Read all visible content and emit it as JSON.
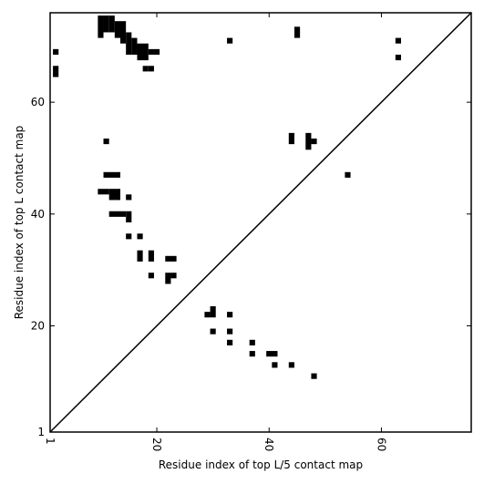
{
  "chart_data": {
    "type": "heatmap",
    "xlabel": "Residue index of top L/5 contact map",
    "ylabel": "Residue index of top L contact map",
    "xlim": [
      1,
      76
    ],
    "ylim": [
      1,
      76
    ],
    "x_ticks": [
      1,
      20,
      40,
      60
    ],
    "y_ticks": [
      1,
      20,
      40,
      60
    ],
    "diagonal": true,
    "color": "#000000",
    "upper_triangle": [
      {
        "x": 10,
        "y": 72,
        "w": 1,
        "h": 4
      },
      {
        "x": 11,
        "y": 73,
        "w": 1,
        "h": 3
      },
      {
        "x": 12,
        "y": 73,
        "w": 1,
        "h": 3
      },
      {
        "x": 13,
        "y": 72,
        "w": 1,
        "h": 3
      },
      {
        "x": 14,
        "y": 71,
        "w": 1,
        "h": 4
      },
      {
        "x": 15,
        "y": 69,
        "w": 1,
        "h": 4
      },
      {
        "x": 16,
        "y": 69,
        "w": 1,
        "h": 3
      },
      {
        "x": 17,
        "y": 68,
        "w": 2,
        "h": 3
      },
      {
        "x": 19,
        "y": 69,
        "w": 1,
        "h": 1
      },
      {
        "x": 20,
        "y": 69,
        "w": 1,
        "h": 1
      },
      {
        "x": 18,
        "y": 66,
        "w": 1,
        "h": 1
      },
      {
        "x": 19,
        "y": 66,
        "w": 1,
        "h": 1
      },
      {
        "x": 2,
        "y": 69,
        "w": 1,
        "h": 1
      },
      {
        "x": 2,
        "y": 65,
        "w": 1,
        "h": 2
      },
      {
        "x": 11,
        "y": 53,
        "w": 1,
        "h": 1
      },
      {
        "x": 11,
        "y": 47,
        "w": 3,
        "h": 1
      },
      {
        "x": 10,
        "y": 44,
        "w": 2,
        "h": 1
      },
      {
        "x": 12,
        "y": 43,
        "w": 2,
        "h": 2
      },
      {
        "x": 15,
        "y": 43,
        "w": 1,
        "h": 1
      },
      {
        "x": 12,
        "y": 40,
        "w": 3,
        "h": 1
      },
      {
        "x": 15,
        "y": 39,
        "w": 1,
        "h": 2
      },
      {
        "x": 15,
        "y": 36,
        "w": 1,
        "h": 1
      },
      {
        "x": 17,
        "y": 36,
        "w": 1,
        "h": 1
      },
      {
        "x": 17,
        "y": 32,
        "w": 1,
        "h": 2
      },
      {
        "x": 19,
        "y": 32,
        "w": 1,
        "h": 2
      },
      {
        "x": 22,
        "y": 32,
        "w": 2,
        "h": 1
      },
      {
        "x": 19,
        "y": 29,
        "w": 1,
        "h": 1
      },
      {
        "x": 22,
        "y": 28,
        "w": 1,
        "h": 2
      },
      {
        "x": 23,
        "y": 29,
        "w": 1,
        "h": 1
      },
      {
        "x": 33,
        "y": 71,
        "w": 1,
        "h": 1
      },
      {
        "x": 45,
        "y": 72,
        "w": 1,
        "h": 2
      },
      {
        "x": 44,
        "y": 53,
        "w": 1,
        "h": 2
      },
      {
        "x": 47,
        "y": 52,
        "w": 1,
        "h": 3
      },
      {
        "x": 48,
        "y": 53,
        "w": 1,
        "h": 1
      },
      {
        "x": 54,
        "y": 47,
        "w": 1,
        "h": 1
      },
      {
        "x": 63,
        "y": 71,
        "w": 1,
        "h": 1
      },
      {
        "x": 63,
        "y": 68,
        "w": 1,
        "h": 1
      }
    ],
    "lower_triangle": [
      {
        "x": 29,
        "y": 22,
        "w": 1,
        "h": 1
      },
      {
        "x": 30,
        "y": 22,
        "w": 1,
        "h": 2
      },
      {
        "x": 33,
        "y": 22,
        "w": 1,
        "h": 1
      },
      {
        "x": 30,
        "y": 19,
        "w": 1,
        "h": 1
      },
      {
        "x": 33,
        "y": 19,
        "w": 1,
        "h": 1
      },
      {
        "x": 33,
        "y": 17,
        "w": 1,
        "h": 1
      },
      {
        "x": 37,
        "y": 17,
        "w": 1,
        "h": 1
      },
      {
        "x": 37,
        "y": 15,
        "w": 1,
        "h": 1
      },
      {
        "x": 40,
        "y": 15,
        "w": 2,
        "h": 1
      },
      {
        "x": 41,
        "y": 13,
        "w": 1,
        "h": 1
      },
      {
        "x": 44,
        "y": 13,
        "w": 1,
        "h": 1
      },
      {
        "x": 48,
        "y": 11,
        "w": 1,
        "h": 1
      }
    ]
  }
}
